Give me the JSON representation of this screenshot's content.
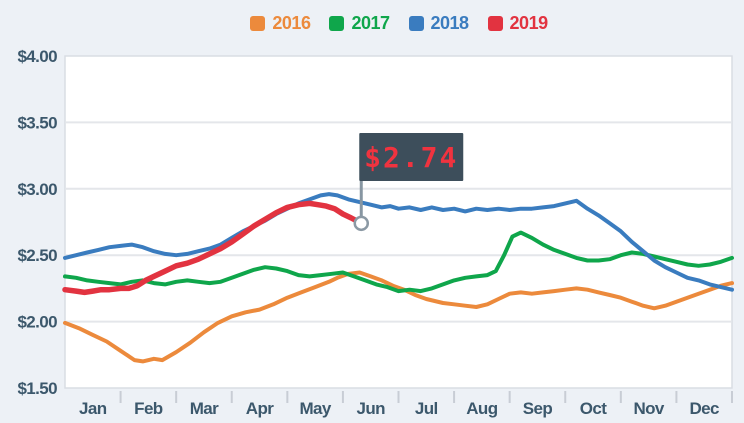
{
  "page": {
    "background_color": "#edf1f6",
    "plot_background": "#ffffff",
    "plot_border_color": "#d9dde3",
    "gridline_color": "#e4e6ea",
    "tick_color": "#c8cdd5",
    "axis_text_color": "#3c586c"
  },
  "tooltip": {
    "label": "$2.74",
    "flag_color": "#3d4e5b",
    "text_color": "#f0333f",
    "pole_color": "#8796a2",
    "marker_fill": "#ffffff",
    "marker_stroke": "#8b99a4"
  },
  "chart_data": {
    "type": "line",
    "title": "",
    "xlabel": "",
    "ylabel": "",
    "x_categories": [
      "Jan",
      "Feb",
      "Mar",
      "Apr",
      "May",
      "Jun",
      "Jul",
      "Aug",
      "Sep",
      "Oct",
      "Nov",
      "Dec"
    ],
    "x_unit": "months (0 = Jan 1, 12 = Dec 31)",
    "ylim": [
      1.5,
      4.0
    ],
    "y_ticks": [
      {
        "label": "$4.00",
        "value": 4.0
      },
      {
        "label": "$3.50",
        "value": 3.5
      },
      {
        "label": "$3.00",
        "value": 3.0
      },
      {
        "label": "$2.50",
        "value": 2.5
      },
      {
        "label": "$2.00",
        "value": 2.0
      },
      {
        "label": "$1.50",
        "value": 1.5
      }
    ],
    "grid": "horizontal",
    "legend_position": "top-center",
    "series": [
      {
        "name": "2016",
        "color": "#ec8a3c",
        "emphasis": false,
        "points": [
          [
            0,
            1.99
          ],
          [
            0.25,
            1.95
          ],
          [
            0.5,
            1.9
          ],
          [
            0.75,
            1.85
          ],
          [
            1,
            1.78
          ],
          [
            1.25,
            1.71
          ],
          [
            1.4,
            1.7
          ],
          [
            1.6,
            1.72
          ],
          [
            1.75,
            1.71
          ],
          [
            2,
            1.77
          ],
          [
            2.25,
            1.84
          ],
          [
            2.5,
            1.92
          ],
          [
            2.75,
            1.99
          ],
          [
            3,
            2.04
          ],
          [
            3.25,
            2.07
          ],
          [
            3.5,
            2.09
          ],
          [
            3.75,
            2.13
          ],
          [
            4,
            2.18
          ],
          [
            4.25,
            2.22
          ],
          [
            4.5,
            2.26
          ],
          [
            4.75,
            2.3
          ],
          [
            4.9,
            2.33
          ],
          [
            5.1,
            2.36
          ],
          [
            5.3,
            2.37
          ],
          [
            5.5,
            2.34
          ],
          [
            5.7,
            2.31
          ],
          [
            5.9,
            2.27
          ],
          [
            6.1,
            2.24
          ],
          [
            6.3,
            2.2
          ],
          [
            6.5,
            2.17
          ],
          [
            6.8,
            2.14
          ],
          [
            7,
            2.13
          ],
          [
            7.2,
            2.12
          ],
          [
            7.4,
            2.11
          ],
          [
            7.6,
            2.13
          ],
          [
            7.8,
            2.17
          ],
          [
            8,
            2.21
          ],
          [
            8.2,
            2.22
          ],
          [
            8.4,
            2.21
          ],
          [
            8.6,
            2.22
          ],
          [
            8.8,
            2.23
          ],
          [
            9,
            2.24
          ],
          [
            9.2,
            2.25
          ],
          [
            9.4,
            2.24
          ],
          [
            9.6,
            2.22
          ],
          [
            9.8,
            2.2
          ],
          [
            10,
            2.18
          ],
          [
            10.2,
            2.15
          ],
          [
            10.4,
            2.12
          ],
          [
            10.6,
            2.1
          ],
          [
            10.8,
            2.12
          ],
          [
            11,
            2.15
          ],
          [
            11.2,
            2.18
          ],
          [
            11.4,
            2.21
          ],
          [
            11.6,
            2.24
          ],
          [
            11.8,
            2.27
          ],
          [
            12,
            2.29
          ]
        ]
      },
      {
        "name": "2017",
        "color": "#0fa64b",
        "emphasis": false,
        "points": [
          [
            0,
            2.34
          ],
          [
            0.2,
            2.33
          ],
          [
            0.4,
            2.31
          ],
          [
            0.6,
            2.3
          ],
          [
            0.8,
            2.29
          ],
          [
            1,
            2.28
          ],
          [
            1.2,
            2.3
          ],
          [
            1.4,
            2.31
          ],
          [
            1.6,
            2.29
          ],
          [
            1.8,
            2.28
          ],
          [
            2,
            2.3
          ],
          [
            2.2,
            2.31
          ],
          [
            2.4,
            2.3
          ],
          [
            2.6,
            2.29
          ],
          [
            2.8,
            2.3
          ],
          [
            3,
            2.33
          ],
          [
            3.2,
            2.36
          ],
          [
            3.4,
            2.39
          ],
          [
            3.6,
            2.41
          ],
          [
            3.8,
            2.4
          ],
          [
            4,
            2.38
          ],
          [
            4.2,
            2.35
          ],
          [
            4.4,
            2.34
          ],
          [
            4.6,
            2.35
          ],
          [
            4.8,
            2.36
          ],
          [
            5,
            2.37
          ],
          [
            5.2,
            2.34
          ],
          [
            5.4,
            2.31
          ],
          [
            5.6,
            2.28
          ],
          [
            5.8,
            2.26
          ],
          [
            6,
            2.23
          ],
          [
            6.2,
            2.24
          ],
          [
            6.4,
            2.23
          ],
          [
            6.6,
            2.25
          ],
          [
            6.8,
            2.28
          ],
          [
            7,
            2.31
          ],
          [
            7.2,
            2.33
          ],
          [
            7.4,
            2.34
          ],
          [
            7.6,
            2.35
          ],
          [
            7.75,
            2.38
          ],
          [
            7.9,
            2.5
          ],
          [
            8.05,
            2.64
          ],
          [
            8.2,
            2.67
          ],
          [
            8.4,
            2.63
          ],
          [
            8.6,
            2.58
          ],
          [
            8.8,
            2.54
          ],
          [
            9,
            2.51
          ],
          [
            9.2,
            2.48
          ],
          [
            9.4,
            2.46
          ],
          [
            9.6,
            2.46
          ],
          [
            9.8,
            2.47
          ],
          [
            10,
            2.5
          ],
          [
            10.2,
            2.52
          ],
          [
            10.4,
            2.51
          ],
          [
            10.6,
            2.49
          ],
          [
            10.8,
            2.47
          ],
          [
            11,
            2.45
          ],
          [
            11.2,
            2.43
          ],
          [
            11.4,
            2.42
          ],
          [
            11.6,
            2.43
          ],
          [
            11.8,
            2.45
          ],
          [
            12,
            2.48
          ]
        ]
      },
      {
        "name": "2018",
        "color": "#3a7cbf",
        "emphasis": false,
        "points": [
          [
            0,
            2.48
          ],
          [
            0.2,
            2.5
          ],
          [
            0.4,
            2.52
          ],
          [
            0.6,
            2.54
          ],
          [
            0.8,
            2.56
          ],
          [
            1,
            2.57
          ],
          [
            1.2,
            2.58
          ],
          [
            1.4,
            2.56
          ],
          [
            1.6,
            2.53
          ],
          [
            1.8,
            2.51
          ],
          [
            2,
            2.5
          ],
          [
            2.2,
            2.51
          ],
          [
            2.4,
            2.53
          ],
          [
            2.6,
            2.55
          ],
          [
            2.8,
            2.58
          ],
          [
            3,
            2.63
          ],
          [
            3.2,
            2.68
          ],
          [
            3.4,
            2.72
          ],
          [
            3.6,
            2.76
          ],
          [
            3.8,
            2.81
          ],
          [
            4,
            2.85
          ],
          [
            4.2,
            2.89
          ],
          [
            4.4,
            2.92
          ],
          [
            4.6,
            2.95
          ],
          [
            4.75,
            2.96
          ],
          [
            4.9,
            2.95
          ],
          [
            5.1,
            2.92
          ],
          [
            5.3,
            2.9
          ],
          [
            5.5,
            2.88
          ],
          [
            5.7,
            2.86
          ],
          [
            5.85,
            2.87
          ],
          [
            6,
            2.85
          ],
          [
            6.2,
            2.86
          ],
          [
            6.4,
            2.84
          ],
          [
            6.6,
            2.86
          ],
          [
            6.8,
            2.84
          ],
          [
            7,
            2.85
          ],
          [
            7.2,
            2.83
          ],
          [
            7.4,
            2.85
          ],
          [
            7.6,
            2.84
          ],
          [
            7.8,
            2.85
          ],
          [
            8,
            2.84
          ],
          [
            8.2,
            2.85
          ],
          [
            8.4,
            2.85
          ],
          [
            8.6,
            2.86
          ],
          [
            8.8,
            2.87
          ],
          [
            9,
            2.89
          ],
          [
            9.2,
            2.91
          ],
          [
            9.4,
            2.85
          ],
          [
            9.6,
            2.8
          ],
          [
            9.8,
            2.74
          ],
          [
            10,
            2.68
          ],
          [
            10.2,
            2.6
          ],
          [
            10.4,
            2.53
          ],
          [
            10.6,
            2.46
          ],
          [
            10.8,
            2.41
          ],
          [
            11,
            2.37
          ],
          [
            11.2,
            2.33
          ],
          [
            11.4,
            2.31
          ],
          [
            11.6,
            2.28
          ],
          [
            11.8,
            2.26
          ],
          [
            12,
            2.24
          ]
        ]
      },
      {
        "name": "2019",
        "color": "#e23340",
        "emphasis": true,
        "points": [
          [
            0,
            2.24
          ],
          [
            0.2,
            2.23
          ],
          [
            0.35,
            2.22
          ],
          [
            0.5,
            2.23
          ],
          [
            0.65,
            2.24
          ],
          [
            0.8,
            2.24
          ],
          [
            1,
            2.25
          ],
          [
            1.15,
            2.25
          ],
          [
            1.3,
            2.27
          ],
          [
            1.45,
            2.31
          ],
          [
            1.6,
            2.34
          ],
          [
            1.8,
            2.38
          ],
          [
            2,
            2.42
          ],
          [
            2.2,
            2.44
          ],
          [
            2.4,
            2.47
          ],
          [
            2.6,
            2.51
          ],
          [
            2.8,
            2.55
          ],
          [
            3,
            2.6
          ],
          [
            3.2,
            2.66
          ],
          [
            3.4,
            2.72
          ],
          [
            3.6,
            2.77
          ],
          [
            3.8,
            2.82
          ],
          [
            4,
            2.86
          ],
          [
            4.2,
            2.88
          ],
          [
            4.4,
            2.89
          ],
          [
            4.55,
            2.88
          ],
          [
            4.7,
            2.87
          ],
          [
            4.85,
            2.85
          ],
          [
            5,
            2.81
          ],
          [
            5.15,
            2.78
          ],
          [
            5.33,
            2.74
          ]
        ]
      }
    ],
    "annotation": {
      "label": "$2.74",
      "series": "2019",
      "x": 5.33,
      "value": 2.74,
      "style": "flag-tooltip"
    }
  }
}
